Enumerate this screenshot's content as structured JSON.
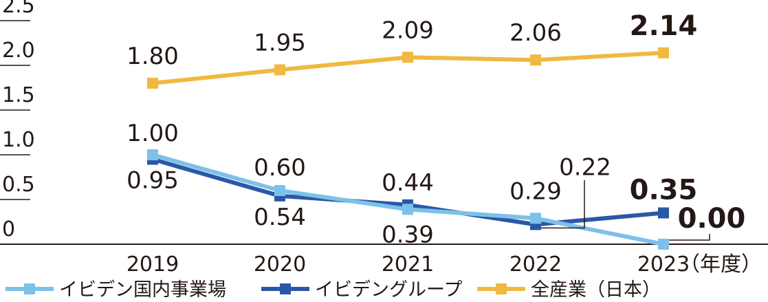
{
  "chart_data": {
    "type": "line",
    "x": [
      "2019",
      "2020",
      "2021",
      "2022",
      "2023"
    ],
    "x_unit_label": "（年度）",
    "ylim": [
      0,
      2.5
    ],
    "yticks": [
      "0",
      "0.5",
      "1.0",
      "1.5",
      "2.0",
      "2.5"
    ],
    "grid": false,
    "legend_position": "bottom-left",
    "series": [
      {
        "name": "イビデン国内事業場",
        "color": "#7dc1ea",
        "values": [
          1.0,
          0.6,
          0.39,
          0.29,
          0.0
        ],
        "labels": [
          "1.00",
          "0.60",
          "0.39",
          "0.29",
          "0.00"
        ]
      },
      {
        "name": "イビデングループ",
        "color": "#2a58a6",
        "values": [
          0.95,
          0.54,
          0.44,
          0.22,
          0.35
        ],
        "labels": [
          "0.95",
          "0.54",
          "0.44",
          "0.22",
          "0.35"
        ]
      },
      {
        "name": "全産業（日本）",
        "color": "#f0b93f",
        "values": [
          1.8,
          1.95,
          2.09,
          2.06,
          2.14
        ],
        "labels": [
          "1.80",
          "1.95",
          "2.09",
          "2.06",
          "2.14"
        ]
      }
    ]
  }
}
